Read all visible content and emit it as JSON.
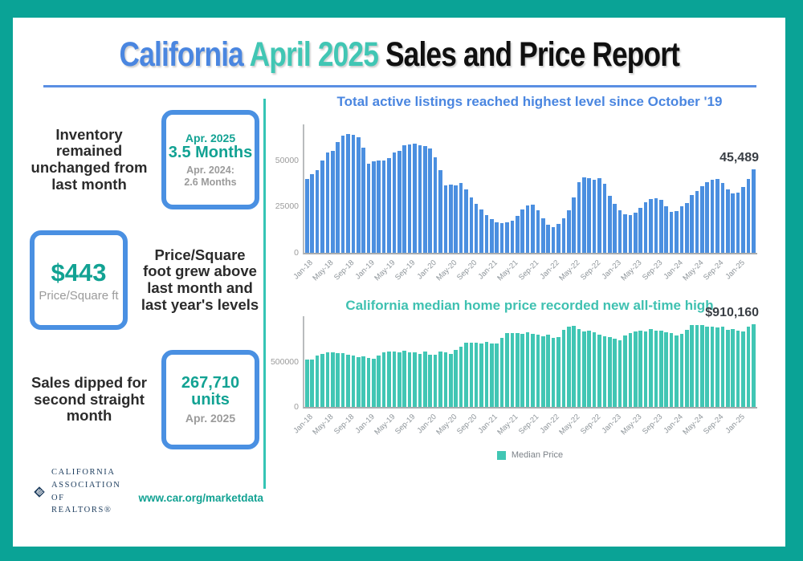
{
  "header": {
    "title": [
      {
        "text": "California ",
        "color": "#4a86e0"
      },
      {
        "text": "April 2025 ",
        "color": "#41c6b4"
      },
      {
        "text": "Sales and Price Report",
        "color": "#101010"
      }
    ],
    "underline_color": "#5a8fe3"
  },
  "stats": [
    {
      "text": "Inventory remained unchanged from last month",
      "box": {
        "line1": "Apr. 2025",
        "line2": "3.5 Months",
        "sub": "Apr. 2024: 2.6 Months"
      }
    },
    {
      "text": "Price/Square foot grew above last month and last year's levels",
      "box": {
        "line1": "$443",
        "sub": "Price/Square ft"
      }
    },
    {
      "text": "Sales dipped for second straight month",
      "box": {
        "line1": "267,710 units",
        "sub": "Apr. 2025"
      }
    }
  ],
  "footer": {
    "org_lines": [
      "CALIFORNIA",
      "ASSOCIATION",
      "OF REALTORS®"
    ],
    "url": "www.car.org/marketdata"
  },
  "colors": {
    "frame": "#0aa396",
    "divider": "#35c4b5",
    "accent_blue": "#4a90e2",
    "accent_teal": "#12a293",
    "gray_text": "#9b9b9b",
    "dark_text": "#2b2b2b",
    "navy": "#1d3d5e"
  },
  "chart_data": [
    {
      "type": "bar",
      "title": "Total active listings reached highest level since October '19",
      "title_color": "#4a86e0",
      "bar_color": "#4b8fe0",
      "ylim": [
        0,
        70000
      ],
      "grid": false,
      "legend": null,
      "x_tick_every": 4,
      "y_ticks": [
        {
          "value": 0,
          "label": "0"
        },
        {
          "value": 25000,
          "label": "25000"
        },
        {
          "value": 50000,
          "label": "50000"
        }
      ],
      "annotation": {
        "text": "45,489",
        "target": "last-bar"
      },
      "categories": [
        "Jan-18",
        "Feb-18",
        "Mar-18",
        "Apr-18",
        "May-18",
        "Jun-18",
        "Jul-18",
        "Aug-18",
        "Sep-18",
        "Oct-18",
        "Nov-18",
        "Dec-18",
        "Jan-19",
        "Feb-19",
        "Mar-19",
        "Apr-19",
        "May-19",
        "Jun-19",
        "Jul-19",
        "Aug-19",
        "Sep-19",
        "Oct-19",
        "Nov-19",
        "Dec-19",
        "Jan-20",
        "Feb-20",
        "Mar-20",
        "Apr-20",
        "May-20",
        "Jun-20",
        "Jul-20",
        "Aug-20",
        "Sep-20",
        "Oct-20",
        "Nov-20",
        "Dec-20",
        "Jan-21",
        "Feb-21",
        "Mar-21",
        "Apr-21",
        "May-21",
        "Jun-21",
        "Jul-21",
        "Aug-21",
        "Sep-21",
        "Oct-21",
        "Nov-21",
        "Dec-21",
        "Jan-22",
        "Feb-22",
        "Mar-22",
        "Apr-22",
        "May-22",
        "Jun-22",
        "Jul-22",
        "Aug-22",
        "Sep-22",
        "Oct-22",
        "Nov-22",
        "Dec-22",
        "Jan-23",
        "Feb-23",
        "Mar-23",
        "Apr-23",
        "May-23",
        "Jun-23",
        "Jul-23",
        "Aug-23",
        "Sep-23",
        "Oct-23",
        "Nov-23",
        "Dec-23",
        "Jan-24",
        "Feb-24",
        "Mar-24",
        "Apr-24",
        "May-24",
        "Jun-24",
        "Jul-24",
        "Aug-24",
        "Sep-24",
        "Oct-24",
        "Nov-24",
        "Dec-24",
        "Jan-25",
        "Feb-25",
        "Mar-25",
        "Apr-25"
      ],
      "values": [
        40000,
        42500,
        45000,
        50000,
        54500,
        55500,
        60000,
        63500,
        64500,
        64000,
        63000,
        57000,
        48500,
        49500,
        50000,
        50000,
        51500,
        54500,
        55500,
        58500,
        59000,
        59500,
        58500,
        58000,
        56500,
        52000,
        45000,
        36500,
        37000,
        36500,
        38000,
        34500,
        30000,
        26500,
        23500,
        20500,
        18000,
        16500,
        16000,
        16500,
        17500,
        20000,
        23500,
        25500,
        26000,
        23000,
        18500,
        15000,
        14000,
        15500,
        18500,
        23000,
        30000,
        38500,
        41000,
        40500,
        39500,
        40500,
        37500,
        31000,
        26500,
        23000,
        21000,
        20500,
        21500,
        24500,
        27500,
        29000,
        29500,
        28500,
        25000,
        22000,
        22500,
        25000,
        27000,
        31500,
        33500,
        36000,
        38500,
        39500,
        40000,
        38000,
        34500,
        32000,
        32500,
        35500,
        40000,
        45489
      ]
    },
    {
      "type": "bar",
      "title": "California median home price recorded new all-time high",
      "title_color": "#3fc1b1",
      "bar_color": "#41c6b4",
      "ylim": [
        0,
        1000000
      ],
      "grid": false,
      "legend": {
        "label": "Median Price",
        "swatch_color": "#41c6b4"
      },
      "x_tick_every": 4,
      "y_ticks": [
        {
          "value": 0,
          "label": "0"
        },
        {
          "value": 500000,
          "label": "500000"
        }
      ],
      "annotation": {
        "text": "$910,160",
        "target": "last-bar"
      },
      "categories": [
        "Jan-18",
        "Feb-18",
        "Mar-18",
        "Apr-18",
        "May-18",
        "Jun-18",
        "Jul-18",
        "Aug-18",
        "Sep-18",
        "Oct-18",
        "Nov-18",
        "Dec-18",
        "Jan-19",
        "Feb-19",
        "Mar-19",
        "Apr-19",
        "May-19",
        "Jun-19",
        "Jul-19",
        "Aug-19",
        "Sep-19",
        "Oct-19",
        "Nov-19",
        "Dec-19",
        "Jan-20",
        "Feb-20",
        "Mar-20",
        "Apr-20",
        "May-20",
        "Jun-20",
        "Jul-20",
        "Aug-20",
        "Sep-20",
        "Oct-20",
        "Nov-20",
        "Dec-20",
        "Jan-21",
        "Feb-21",
        "Mar-21",
        "Apr-21",
        "May-21",
        "Jun-21",
        "Jul-21",
        "Aug-21",
        "Sep-21",
        "Oct-21",
        "Nov-21",
        "Dec-21",
        "Jan-22",
        "Feb-22",
        "Mar-22",
        "Apr-22",
        "May-22",
        "Jun-22",
        "Jul-22",
        "Aug-22",
        "Sep-22",
        "Oct-22",
        "Nov-22",
        "Dec-22",
        "Jan-23",
        "Feb-23",
        "Mar-23",
        "Apr-23",
        "May-23",
        "Jun-23",
        "Jul-23",
        "Aug-23",
        "Sep-23",
        "Oct-23",
        "Nov-23",
        "Dec-23",
        "Jan-24",
        "Feb-24",
        "Mar-24",
        "Apr-24",
        "May-24",
        "Jun-24",
        "Jul-24",
        "Aug-24",
        "Sep-24",
        "Oct-24",
        "Nov-24",
        "Dec-24",
        "Jan-25",
        "Feb-25",
        "Mar-25",
        "Apr-25"
      ],
      "values": [
        527000,
        522000,
        564000,
        584000,
        600000,
        602000,
        591000,
        596000,
        578000,
        572000,
        554000,
        557000,
        538000,
        534000,
        565000,
        602000,
        611000,
        611000,
        607000,
        617000,
        605000,
        605000,
        589000,
        615000,
        575000,
        578000,
        612000,
        606000,
        588000,
        626000,
        666000,
        706000,
        712000,
        711000,
        699000,
        717000,
        699000,
        699000,
        759000,
        814000,
        819000,
        819000,
        811000,
        827000,
        808000,
        798000,
        782000,
        797000,
        765000,
        771000,
        849000,
        884000,
        898000,
        863000,
        833000,
        839000,
        821000,
        801000,
        777000,
        774000,
        751000,
        735000,
        791000,
        815000,
        836000,
        838000,
        832000,
        859000,
        843000,
        840000,
        822000,
        819000,
        788000,
        806000,
        854000,
        904000,
        908000,
        900000,
        886000,
        888000,
        880000,
        888000,
        852000,
        861000,
        838000,
        829000,
        884000,
        910160
      ]
    }
  ]
}
